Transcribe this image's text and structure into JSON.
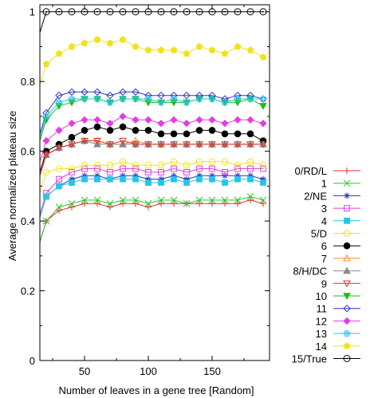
{
  "chart_data": {
    "type": "line",
    "xlabel": "Number of leaves in a gene tree [Random]",
    "ylabel": "Average normalized plateau size",
    "xlim": [
      15,
      195
    ],
    "ylim": [
      0,
      1.02
    ],
    "xticks": [
      50,
      100,
      150
    ],
    "yticks": [
      0,
      0.2,
      0.4,
      0.6,
      0.8,
      1
    ],
    "ytick_labels": [
      "0",
      "0.2",
      "0.4",
      "0.6",
      "0.8",
      "1"
    ],
    "xtick_labels": [
      "50",
      "100",
      "150"
    ],
    "grid": false,
    "legend_position": "right",
    "x": [
      20,
      30,
      40,
      50,
      60,
      70,
      80,
      90,
      100,
      110,
      120,
      130,
      140,
      150,
      160,
      170,
      180,
      190
    ],
    "series": [
      {
        "name": "0/RD/L",
        "color": "#e8322a",
        "marker": "plus",
        "values": [
          0.4,
          0.43,
          0.44,
          0.45,
          0.45,
          0.44,
          0.45,
          0.45,
          0.44,
          0.45,
          0.45,
          0.45,
          0.45,
          0.45,
          0.45,
          0.45,
          0.46,
          0.45
        ]
      },
      {
        "name": "1",
        "color": "#2ec62e",
        "marker": "x",
        "values": [
          0.4,
          0.44,
          0.45,
          0.46,
          0.46,
          0.45,
          0.46,
          0.46,
          0.45,
          0.46,
          0.46,
          0.45,
          0.46,
          0.46,
          0.46,
          0.46,
          0.47,
          0.46
        ]
      },
      {
        "name": "2/NE",
        "color": "#2a35c8",
        "marker": "star",
        "values": [
          0.47,
          0.5,
          0.52,
          0.53,
          0.53,
          0.52,
          0.53,
          0.53,
          0.52,
          0.52,
          0.53,
          0.52,
          0.53,
          0.53,
          0.53,
          0.53,
          0.53,
          0.52
        ]
      },
      {
        "name": "3",
        "color": "#e23fe2",
        "marker": "square-open",
        "values": [
          0.48,
          0.52,
          0.54,
          0.55,
          0.55,
          0.54,
          0.55,
          0.55,
          0.54,
          0.54,
          0.55,
          0.54,
          0.55,
          0.55,
          0.54,
          0.55,
          0.55,
          0.55
        ]
      },
      {
        "name": "4",
        "color": "#29c4e8",
        "marker": "square-filled",
        "values": [
          0.47,
          0.5,
          0.51,
          0.52,
          0.52,
          0.52,
          0.52,
          0.52,
          0.51,
          0.51,
          0.52,
          0.51,
          0.52,
          0.52,
          0.51,
          0.52,
          0.52,
          0.51
        ]
      },
      {
        "name": "5/D",
        "color": "#f2e21e",
        "marker": "circle-open",
        "values": [
          0.54,
          0.55,
          0.55,
          0.56,
          0.56,
          0.56,
          0.57,
          0.56,
          0.56,
          0.56,
          0.57,
          0.56,
          0.57,
          0.57,
          0.57,
          0.56,
          0.57,
          0.56
        ]
      },
      {
        "name": "6",
        "color": "#000000",
        "marker": "circle-filled",
        "values": [
          0.6,
          0.62,
          0.64,
          0.66,
          0.67,
          0.66,
          0.67,
          0.66,
          0.66,
          0.65,
          0.65,
          0.65,
          0.66,
          0.66,
          0.65,
          0.65,
          0.65,
          0.63
        ]
      },
      {
        "name": "7",
        "color": "#ff8c2a",
        "marker": "triangle-open",
        "values": [
          0.59,
          0.61,
          0.62,
          0.63,
          0.63,
          0.62,
          0.62,
          0.63,
          0.62,
          0.62,
          0.62,
          0.62,
          0.62,
          0.62,
          0.62,
          0.62,
          0.62,
          0.62
        ]
      },
      {
        "name": "8/H/DC",
        "color": "#888888",
        "marker": "triangle-filled",
        "values": [
          0.59,
          0.61,
          0.62,
          0.63,
          0.62,
          0.62,
          0.62,
          0.62,
          0.62,
          0.62,
          0.62,
          0.62,
          0.62,
          0.62,
          0.62,
          0.62,
          0.62,
          0.62
        ]
      },
      {
        "name": "9",
        "color": "#e0302a",
        "marker": "tri-down-open",
        "values": [
          0.59,
          0.61,
          0.62,
          0.63,
          0.63,
          0.62,
          0.63,
          0.62,
          0.62,
          0.62,
          0.62,
          0.62,
          0.62,
          0.62,
          0.62,
          0.62,
          0.62,
          0.62
        ]
      },
      {
        "name": "10",
        "color": "#18c018",
        "marker": "tri-down-filled",
        "values": [
          0.69,
          0.73,
          0.74,
          0.75,
          0.75,
          0.74,
          0.75,
          0.75,
          0.74,
          0.74,
          0.74,
          0.74,
          0.75,
          0.75,
          0.74,
          0.74,
          0.75,
          0.73
        ]
      },
      {
        "name": "11",
        "color": "#2a35c8",
        "marker": "diamond-open",
        "values": [
          0.71,
          0.76,
          0.77,
          0.77,
          0.77,
          0.76,
          0.77,
          0.77,
          0.76,
          0.76,
          0.76,
          0.76,
          0.76,
          0.76,
          0.75,
          0.76,
          0.76,
          0.75
        ]
      },
      {
        "name": "12",
        "color": "#e23fe2",
        "marker": "diamond-filled",
        "values": [
          0.63,
          0.66,
          0.68,
          0.69,
          0.69,
          0.68,
          0.7,
          0.69,
          0.69,
          0.68,
          0.69,
          0.68,
          0.69,
          0.69,
          0.68,
          0.69,
          0.69,
          0.68
        ]
      },
      {
        "name": "13",
        "color": "#29c4e8",
        "marker": "pentagon-open",
        "values": [
          0.7,
          0.74,
          0.75,
          0.75,
          0.75,
          0.74,
          0.75,
          0.75,
          0.75,
          0.74,
          0.75,
          0.74,
          0.75,
          0.75,
          0.74,
          0.75,
          0.75,
          0.75
        ]
      },
      {
        "name": "14",
        "color": "#f2e21e",
        "marker": "pentagon-filled",
        "values": [
          0.85,
          0.88,
          0.9,
          0.91,
          0.92,
          0.91,
          0.92,
          0.9,
          0.89,
          0.89,
          0.89,
          0.88,
          0.9,
          0.89,
          0.88,
          0.9,
          0.89,
          0.87
        ]
      },
      {
        "name": "15/True",
        "color": "#000000",
        "marker": "circle-dot",
        "values": [
          1,
          1,
          1,
          1,
          1,
          1,
          1,
          1,
          1,
          1,
          1,
          1,
          1,
          1,
          1,
          1,
          1,
          1
        ]
      }
    ]
  }
}
